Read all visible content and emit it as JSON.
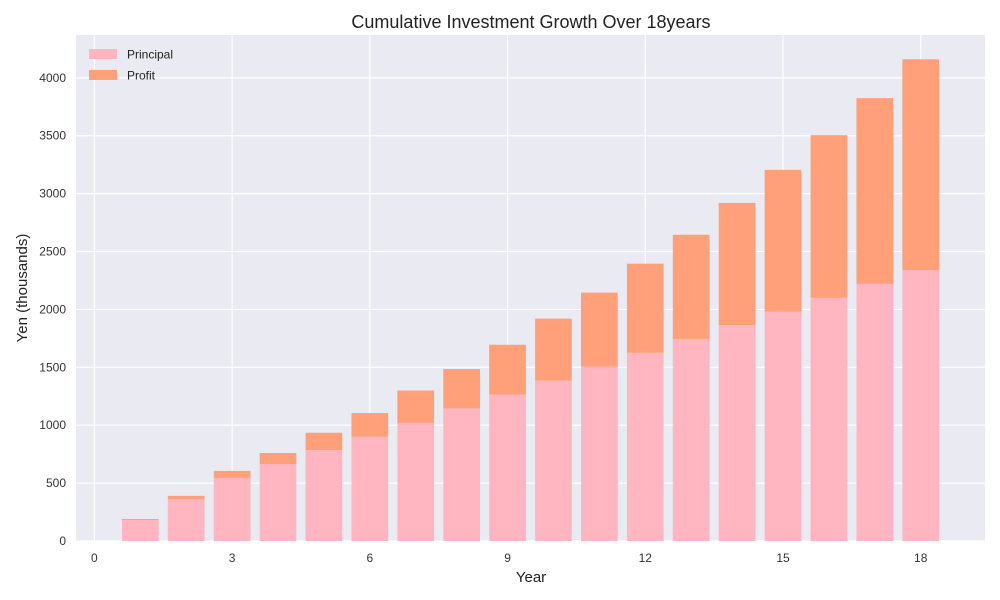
{
  "chart_data": {
    "type": "bar",
    "stacked": true,
    "title": "Cumulative Investment Growth Over 18years",
    "xlabel": "Year",
    "ylabel": "Yen (thousands)",
    "x": [
      1,
      2,
      3,
      4,
      5,
      6,
      7,
      8,
      9,
      10,
      11,
      12,
      13,
      14,
      15,
      16,
      17,
      18
    ],
    "xlim": [
      -0.4,
      19.4
    ],
    "ylim": [
      0,
      4370
    ],
    "xticks": [
      0,
      3,
      6,
      9,
      12,
      15,
      18
    ],
    "yticks": [
      0,
      500,
      1000,
      1500,
      2000,
      2500,
      3000,
      3500,
      4000
    ],
    "grid": true,
    "legend_position": "top-left",
    "series": [
      {
        "name": "Principal",
        "color": "#FFB6C1",
        "values": [
          180,
          360,
          545,
          665,
          785,
          900,
          1020,
          1145,
          1265,
          1385,
          1505,
          1625,
          1745,
          1865,
          1980,
          2100,
          2220,
          2340
        ]
      },
      {
        "name": "Profit",
        "color": "#FFA07A",
        "values": [
          10,
          30,
          60,
          95,
          150,
          205,
          280,
          340,
          430,
          535,
          640,
          770,
          900,
          1055,
          1225,
          1405,
          1605,
          1820
        ]
      }
    ],
    "colors": {
      "plot_background": "#EAEAF2",
      "grid": "#FFFFFF"
    }
  }
}
